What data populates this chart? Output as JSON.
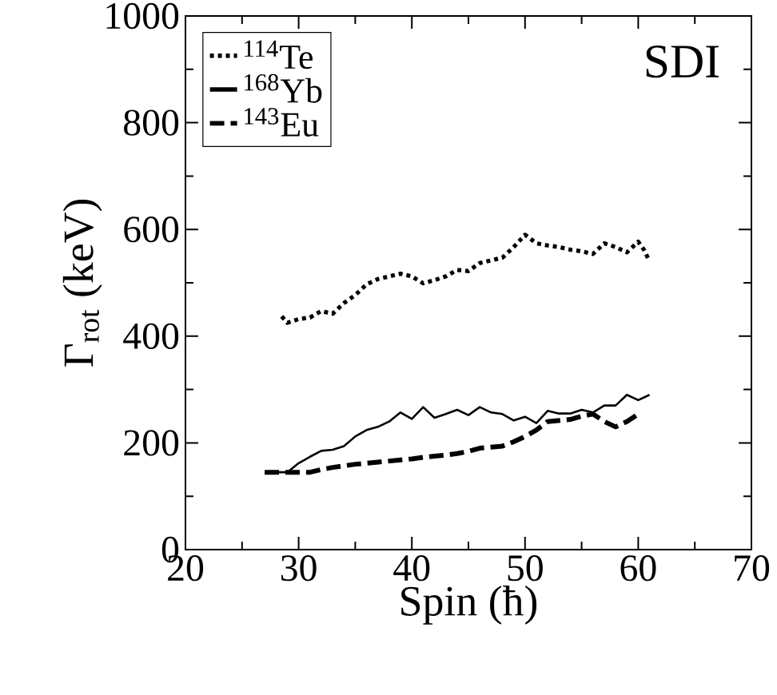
{
  "chart_data": {
    "type": "line",
    "xlabel": "Spin (ħ)",
    "ylabel": "Γ$_{rot}$ (keV)",
    "annotations": [
      "SDI"
    ],
    "xlim": [
      20,
      70
    ],
    "xticks": [
      20,
      30,
      40,
      50,
      60,
      70
    ],
    "ylim": [
      0,
      1000
    ],
    "yticks": [
      0,
      200,
      400,
      600,
      800,
      1000
    ],
    "legend": "top left",
    "grid": false,
    "series": [
      {
        "name": "$^{114}$Te",
        "color": "#000000",
        "line_style": "dotted",
        "x": [
          28.5,
          29,
          30,
          31,
          32,
          33,
          34,
          35,
          36,
          37,
          38,
          39,
          40,
          41,
          42,
          43,
          44,
          45,
          46,
          47,
          48,
          49,
          50,
          51,
          52,
          53,
          54,
          55,
          56,
          57,
          58,
          59,
          60,
          60.5,
          61
        ],
        "values": [
          437,
          425,
          432,
          435,
          447,
          442,
          462,
          477,
          497,
          507,
          512,
          517,
          512,
          499,
          505,
          512,
          524,
          522,
          537,
          542,
          547,
          567,
          590,
          574,
          570,
          567,
          562,
          559,
          554,
          574,
          567,
          557,
          577,
          562,
          540
        ]
      },
      {
        "name": "$^{168}$Yb",
        "color": "#000000",
        "line_style": "solid",
        "x": [
          27,
          28,
          29,
          30,
          31,
          32,
          33,
          34,
          35,
          36,
          37,
          38,
          39,
          40,
          41,
          42,
          43,
          44,
          45,
          46,
          47,
          48,
          49,
          50,
          51,
          52,
          53,
          54,
          55,
          56,
          57,
          58,
          59,
          60,
          61
        ],
        "values": [
          145,
          145,
          145,
          162,
          174,
          185,
          187,
          194,
          212,
          224,
          230,
          240,
          257,
          245,
          267,
          247,
          254,
          262,
          252,
          267,
          257,
          254,
          242,
          249,
          237,
          260,
          255,
          255,
          262,
          257,
          270,
          270,
          290,
          280,
          290
        ]
      },
      {
        "name": "$^{143}$Eu",
        "color": "#000000",
        "line_style": "dashed",
        "x": [
          27,
          28,
          29,
          30,
          31,
          32,
          33,
          34,
          35,
          36,
          37,
          38,
          39,
          40,
          41,
          42,
          43,
          44,
          45,
          46,
          47,
          48,
          49,
          50,
          51,
          52,
          53,
          54,
          55,
          56,
          57,
          58,
          59,
          60
        ],
        "values": [
          145,
          145,
          145,
          145,
          145,
          150,
          154,
          157,
          160,
          162,
          164,
          166,
          168,
          170,
          173,
          175,
          177,
          180,
          184,
          190,
          192,
          194,
          202,
          212,
          224,
          240,
          242,
          244,
          250,
          254,
          240,
          230,
          240,
          254
        ]
      }
    ]
  }
}
